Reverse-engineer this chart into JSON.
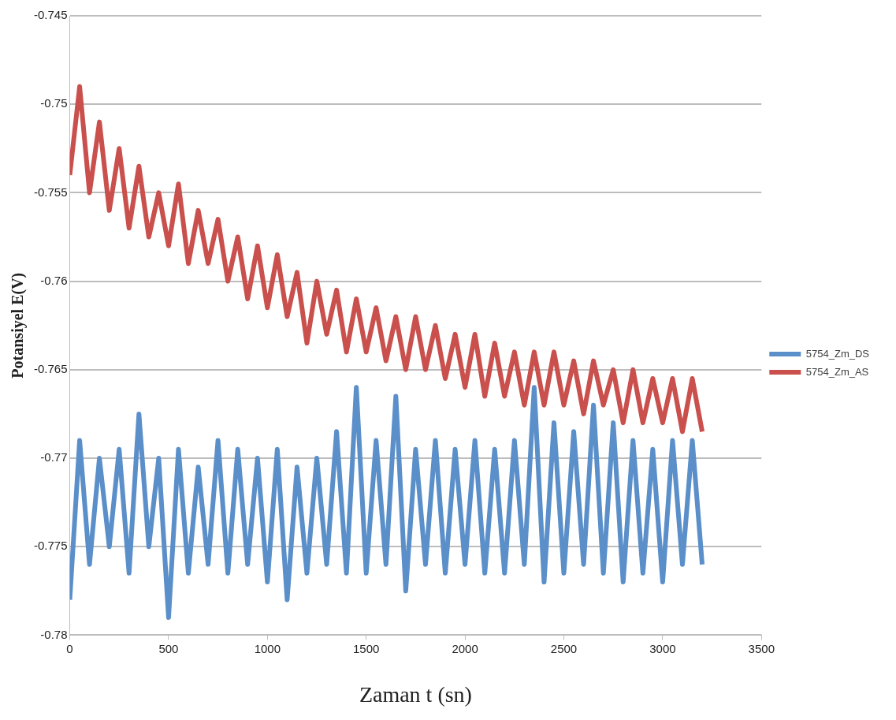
{
  "chart_data": {
    "type": "line",
    "xlabel": "Zaman t (sn)",
    "ylabel": "Potansiyel E(V)",
    "x": [
      0,
      50,
      100,
      150,
      200,
      250,
      300,
      350,
      400,
      450,
      500,
      550,
      600,
      650,
      700,
      750,
      800,
      850,
      900,
      950,
      1000,
      1050,
      1100,
      1150,
      1200,
      1250,
      1300,
      1350,
      1400,
      1450,
      1500,
      1550,
      1600,
      1650,
      1700,
      1750,
      1800,
      1850,
      1900,
      1950,
      2000,
      2050,
      2100,
      2150,
      2200,
      2250,
      2300,
      2350,
      2400,
      2450,
      2500,
      2550,
      2600,
      2650,
      2700,
      2750,
      2800,
      2850,
      2900,
      2950,
      3000,
      3050,
      3100,
      3150,
      3200
    ],
    "series": [
      {
        "name": "5754_Zm_DS",
        "color": "#5b8fc9",
        "values": [
          -0.778,
          -0.769,
          -0.776,
          -0.77,
          -0.775,
          -0.7695,
          -0.7765,
          -0.7675,
          -0.775,
          -0.77,
          -0.779,
          -0.7695,
          -0.7765,
          -0.7705,
          -0.776,
          -0.769,
          -0.7765,
          -0.7695,
          -0.776,
          -0.77,
          -0.777,
          -0.7695,
          -0.778,
          -0.7705,
          -0.7765,
          -0.77,
          -0.776,
          -0.7685,
          -0.7765,
          -0.766,
          -0.7765,
          -0.769,
          -0.776,
          -0.7665,
          -0.7775,
          -0.7695,
          -0.776,
          -0.769,
          -0.7765,
          -0.7695,
          -0.776,
          -0.769,
          -0.7765,
          -0.7695,
          -0.7765,
          -0.769,
          -0.776,
          -0.766,
          -0.777,
          -0.768,
          -0.7765,
          -0.7685,
          -0.776,
          -0.767,
          -0.7765,
          -0.768,
          -0.777,
          -0.769,
          -0.7765,
          -0.7695,
          -0.777,
          -0.769,
          -0.776,
          -0.769,
          -0.776
        ]
      },
      {
        "name": "5754_Zm_AS",
        "color": "#c9504c",
        "values": [
          -0.754,
          -0.749,
          -0.755,
          -0.751,
          -0.756,
          -0.7525,
          -0.757,
          -0.7535,
          -0.7575,
          -0.755,
          -0.758,
          -0.7545,
          -0.759,
          -0.756,
          -0.759,
          -0.7565,
          -0.76,
          -0.7575,
          -0.761,
          -0.758,
          -0.7615,
          -0.7585,
          -0.762,
          -0.7595,
          -0.7635,
          -0.76,
          -0.763,
          -0.7605,
          -0.764,
          -0.761,
          -0.764,
          -0.7615,
          -0.7645,
          -0.762,
          -0.765,
          -0.762,
          -0.765,
          -0.7625,
          -0.7655,
          -0.763,
          -0.766,
          -0.763,
          -0.7665,
          -0.7635,
          -0.7665,
          -0.764,
          -0.767,
          -0.764,
          -0.767,
          -0.764,
          -0.767,
          -0.7645,
          -0.7675,
          -0.7645,
          -0.767,
          -0.765,
          -0.768,
          -0.765,
          -0.768,
          -0.7655,
          -0.768,
          -0.7655,
          -0.7685,
          -0.7655,
          -0.7685
        ]
      }
    ],
    "xlim": [
      0,
      3500
    ],
    "xticks": [
      0,
      500,
      1000,
      1500,
      2000,
      2500,
      3000,
      3500
    ],
    "ylim": [
      -0.78,
      -0.745
    ],
    "yticks": [
      -0.78,
      -0.775,
      -0.77,
      -0.765,
      -0.76,
      -0.755,
      -0.75,
      -0.745
    ],
    "grid": "y",
    "legend": "right",
    "marker": "none",
    "line_style": "solid"
  }
}
